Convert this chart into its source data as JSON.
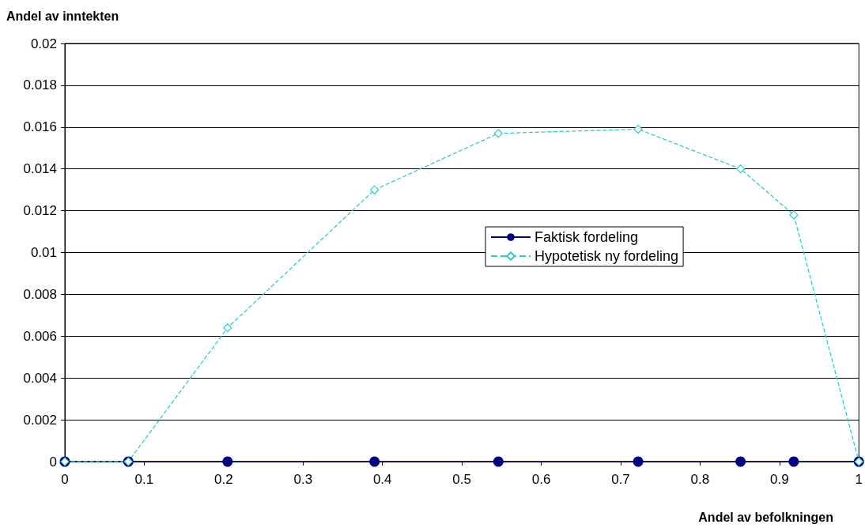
{
  "chart_data": {
    "type": "line",
    "xlabel": "Andel av befolkningen",
    "ylabel": "Andel av inntekten",
    "xlim": [
      0,
      1
    ],
    "xticks": [
      0,
      0.1,
      0.2,
      0.3,
      0.4,
      0.5,
      0.6,
      0.7,
      0.8,
      0.9,
      1
    ],
    "ylim": [
      0,
      0.02
    ],
    "yticks": [
      0,
      0.002,
      0.004,
      0.006,
      0.008,
      0.01,
      0.012,
      0.014,
      0.016,
      0.018,
      0.02
    ],
    "grid": "y",
    "legend": "right",
    "series": [
      {
        "name": "Faktisk fordeling",
        "color": "#000080",
        "marker": "circle",
        "line_style": "solid",
        "x": [
          0,
          0.08,
          0.205,
          0.39,
          0.546,
          0.722,
          0.851,
          0.918,
          1
        ],
        "values": [
          0,
          0,
          0,
          0,
          0,
          0,
          0,
          0,
          0
        ]
      },
      {
        "name": "Hypotetisk ny fordeling",
        "color": "#33cccc",
        "marker": "diamond",
        "line_style": "dashed",
        "x": [
          0,
          0.08,
          0.205,
          0.39,
          0.546,
          0.722,
          0.851,
          0.918,
          1
        ],
        "values": [
          0,
          0,
          0.0064,
          0.013,
          0.0157,
          0.0159,
          0.014,
          0.0118,
          0
        ]
      }
    ]
  }
}
